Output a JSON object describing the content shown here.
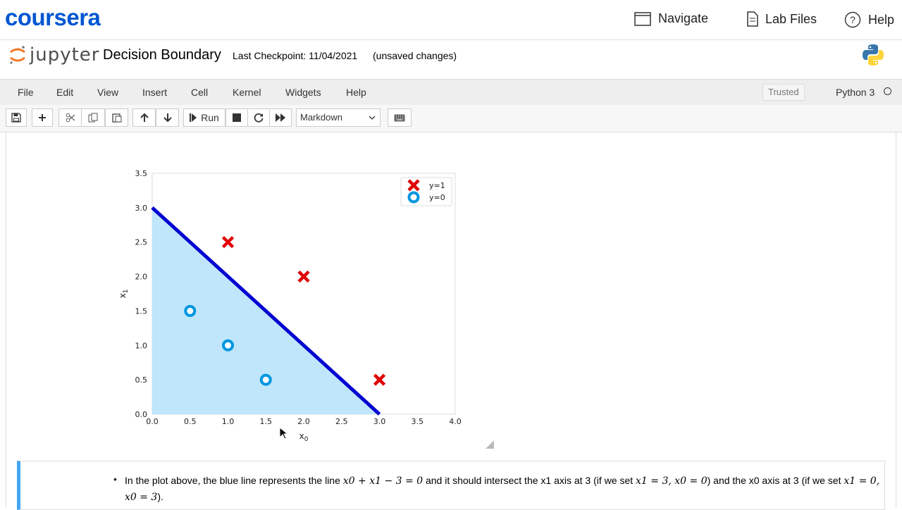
{
  "coursera": {
    "brand": "coursera",
    "nav": [
      {
        "label": "Navigate",
        "icon": "window-icon"
      },
      {
        "label": "Lab Files",
        "icon": "file-icon"
      },
      {
        "label": "Help",
        "icon": "help-icon"
      }
    ]
  },
  "jupyter": {
    "logo_text": "jupyter",
    "notebook_title": "Decision Boundary",
    "checkpoint": "Last Checkpoint: 11/04/2021",
    "status": "(unsaved changes)"
  },
  "menu": {
    "items": [
      "File",
      "Edit",
      "View",
      "Insert",
      "Cell",
      "Kernel",
      "Widgets",
      "Help"
    ],
    "trusted": "Trusted",
    "kernel": "Python 3"
  },
  "toolbar": {
    "run_label": "Run",
    "cell_type": "Markdown"
  },
  "chart_data": {
    "type": "scatter",
    "xlabel": "x0",
    "ylabel": "x1",
    "xlim": [
      0,
      4
    ],
    "ylim": [
      0,
      3.5
    ],
    "xticks": [
      "0.0",
      "0.5",
      "1.0",
      "1.5",
      "2.0",
      "2.5",
      "3.0",
      "3.5",
      "4.0"
    ],
    "yticks": [
      "0.0",
      "0.5",
      "1.0",
      "1.5",
      "2.0",
      "2.5",
      "3.0",
      "3.5"
    ],
    "series": [
      {
        "name": "y=1",
        "marker": "x",
        "color": "#e00000",
        "points": [
          [
            1,
            2.5
          ],
          [
            2,
            2
          ],
          [
            3,
            0.5
          ]
        ]
      },
      {
        "name": "y=0",
        "marker": "o",
        "color": "#0096e0",
        "points": [
          [
            0.5,
            1.5
          ],
          [
            1,
            1
          ],
          [
            1.5,
            0.5
          ]
        ]
      }
    ],
    "line": {
      "x": [
        0,
        3
      ],
      "y": [
        3,
        0
      ],
      "color": "#0000d0"
    },
    "fill": {
      "color": "#bfe6fb"
    },
    "legend_position": "top-right"
  },
  "markdown": {
    "text_1": "In the plot above, the blue line represents the line",
    "eq_1": "x0 + x1 − 3 = 0",
    "text_2": "and it should intersect the x1 axis at 3 (if we set",
    "eq_2": "x1 = 3, x0 = 0",
    "text_3": ") and the x0 axis at 3 (if we set",
    "eq_3": "x1 = 0, x0 = 3",
    "text_4": ")."
  }
}
